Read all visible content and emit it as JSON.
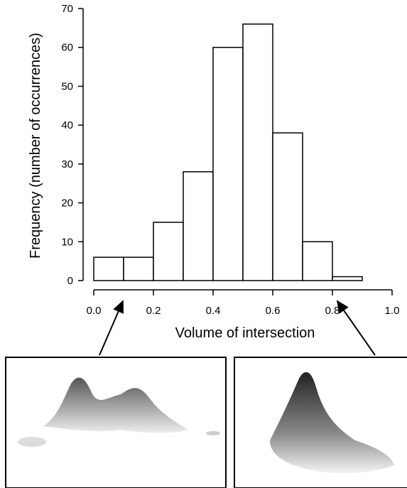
{
  "chart_data": {
    "type": "histogram",
    "x_label": "Volume of intersection",
    "y_label": "Frequency (number of occurrences)",
    "bins": [
      0.0,
      0.1,
      0.2,
      0.3,
      0.4,
      0.5,
      0.6,
      0.7,
      0.8,
      0.9,
      1.0
    ],
    "values": [
      6,
      6,
      15,
      28,
      60,
      66,
      38,
      10,
      1,
      0
    ],
    "color": "#ffffff",
    "xlim": [
      0,
      1
    ],
    "xticks": [
      {
        "value": 0,
        "label": "0.0"
      },
      0.2,
      0.4,
      0.6,
      0.8,
      {
        "value": 1,
        "label": "1.0"
      }
    ],
    "ylim": [
      0,
      70
    ],
    "yticks": [
      0,
      10,
      20,
      30,
      40,
      50,
      60,
      70
    ],
    "grid": false
  }
}
